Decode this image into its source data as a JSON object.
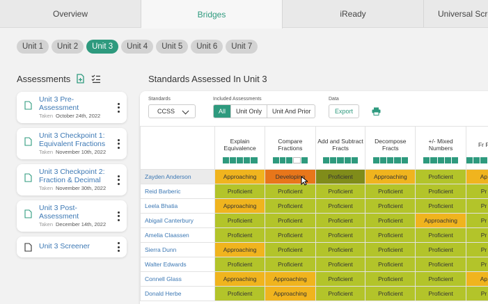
{
  "tabs": [
    "Overview",
    "Bridges",
    "iReady",
    "Universal Screen"
  ],
  "active_tab": 1,
  "units": [
    "Unit 1",
    "Unit 2",
    "Unit 3",
    "Unit 4",
    "Unit 5",
    "Unit 6",
    "Unit 7"
  ],
  "active_unit": 2,
  "assessments": {
    "title": "Assessments",
    "items": [
      {
        "name": "Unit 3 Pre-Assessment",
        "taken_label": "Taken",
        "date": "October 24th, 2022"
      },
      {
        "name": "Unit 3 Checkpoint 1: Equivalent Fractions",
        "taken_label": "Taken",
        "date": "November 10th, 2022"
      },
      {
        "name": "Unit 3 Checkpoint 2: Fraction & Decimal",
        "taken_label": "Taken",
        "date": "November 30th, 2022"
      },
      {
        "name": "Unit 3 Post-Assessment",
        "taken_label": "Taken",
        "date": "December 14th, 2022"
      },
      {
        "name": "Unit 3 Screener",
        "taken_label": "",
        "date": ""
      }
    ]
  },
  "standards_panel": {
    "title": "Standards Assessed In Unit 3",
    "standards_label": "Standards",
    "standards_value": "CCSS",
    "included_label": "Included Assessments",
    "included_options": [
      "All",
      "Unit Only",
      "Unit And Prior"
    ],
    "included_selected": 0,
    "data_label": "Data",
    "export_label": "Export"
  },
  "columns": [
    {
      "name": "Explain Equivalence"
    },
    {
      "name": "Compare Fractions"
    },
    {
      "name": "Add and Subtract Fracts"
    },
    {
      "name": "Decompose Fracts"
    },
    {
      "name": "+/- Mixed Numbers"
    },
    {
      "name": "Fr P"
    }
  ],
  "rows": [
    {
      "student": "Zayden Anderson",
      "cells": [
        "Approaching",
        "Developing",
        "Proficient",
        "Approaching",
        "Proficient",
        "Ap"
      ]
    },
    {
      "student": "Reid Barberic",
      "cells": [
        "Proficient",
        "Proficient",
        "Proficient",
        "Proficient",
        "Proficient",
        "Pr"
      ]
    },
    {
      "student": "Leela Bhatia",
      "cells": [
        "Approaching",
        "Proficient",
        "Proficient",
        "Proficient",
        "Proficient",
        "Pr"
      ]
    },
    {
      "student": "Abigail Canterbury",
      "cells": [
        "Proficient",
        "Proficient",
        "Proficient",
        "Proficient",
        "Approaching",
        "Pr"
      ]
    },
    {
      "student": "Amelia Claassen",
      "cells": [
        "Proficient",
        "Proficient",
        "Proficient",
        "Proficient",
        "Proficient",
        "Pr"
      ]
    },
    {
      "student": "Sierra Dunn",
      "cells": [
        "Approaching",
        "Proficient",
        "Proficient",
        "Proficient",
        "Proficient",
        "Pr"
      ]
    },
    {
      "student": "Walter Edwards",
      "cells": [
        "Proficient",
        "Proficient",
        "Proficient",
        "Proficient",
        "Proficient",
        "Pr"
      ]
    },
    {
      "student": "Connell Glass",
      "cells": [
        "Approaching",
        "Approaching",
        "Proficient",
        "Proficient",
        "Proficient",
        "Ap"
      ]
    },
    {
      "student": "Donald Herbe",
      "cells": [
        "Proficient",
        "Approaching",
        "Proficient",
        "Proficient",
        "Proficient",
        "Pr"
      ]
    }
  ],
  "colors": {
    "accent": "#2e9a7e",
    "proficient": "#b3c42a",
    "approaching": "#f0b41e",
    "developing": "#e8761a",
    "link": "#3c78b4"
  }
}
